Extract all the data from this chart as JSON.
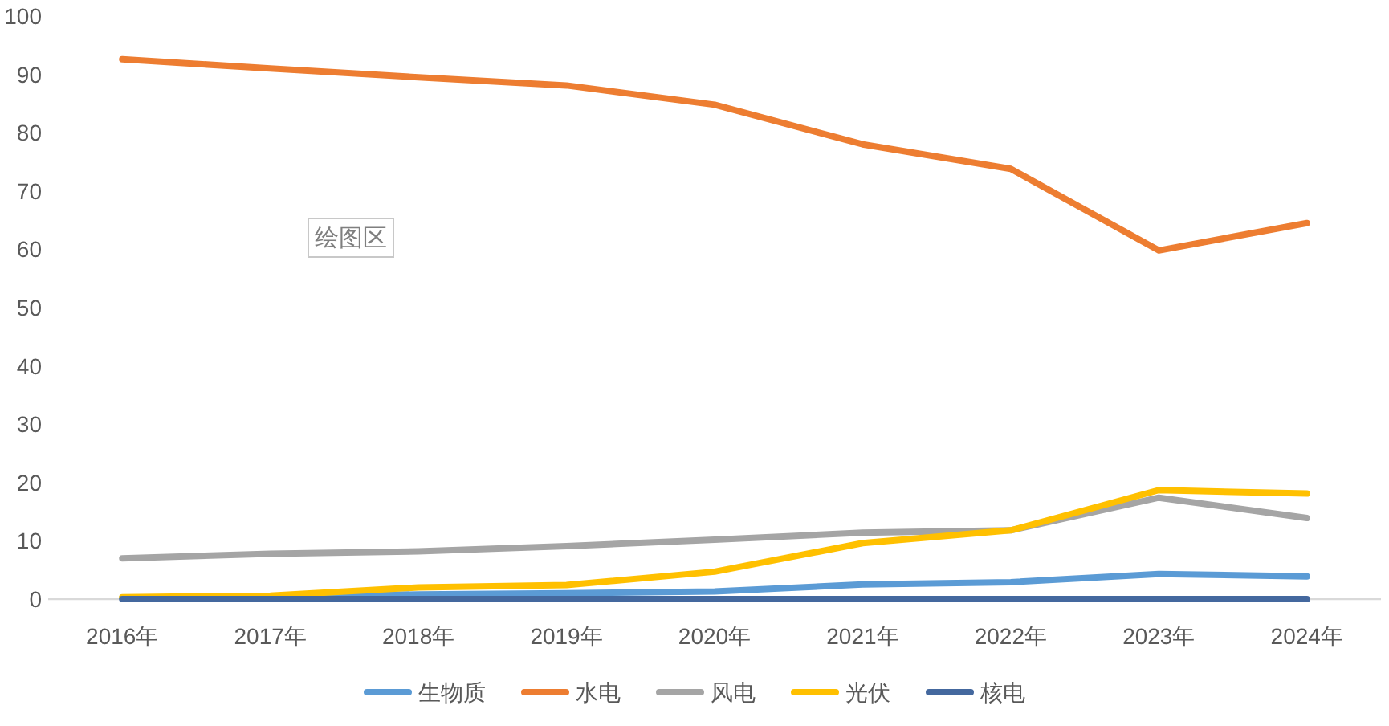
{
  "chart_data": {
    "type": "line",
    "categories": [
      "2016年",
      "2017年",
      "2018年",
      "2019年",
      "2020年",
      "2021年",
      "2022年",
      "2023年",
      "2024年"
    ],
    "series": [
      {
        "name": "生物质",
        "color": "#5b9bd5",
        "values": [
          0.2,
          0.4,
          0.8,
          1.0,
          1.3,
          2.5,
          2.9,
          4.3,
          3.9
        ]
      },
      {
        "name": "水电",
        "color": "#ed7d31",
        "values": [
          92.6,
          91.0,
          89.5,
          88.1,
          84.8,
          78.0,
          73.8,
          59.8,
          64.5
        ]
      },
      {
        "name": "风电",
        "color": "#a5a5a5",
        "values": [
          7.0,
          7.8,
          8.2,
          9.1,
          10.2,
          11.4,
          11.8,
          17.4,
          13.9
        ]
      },
      {
        "name": "光伏",
        "color": "#ffc000",
        "values": [
          0.3,
          0.6,
          2.0,
          2.4,
          4.7,
          9.6,
          11.8,
          18.7,
          18.1
        ]
      },
      {
        "name": "核电",
        "color": "#44689e",
        "values": [
          0,
          0,
          0,
          0,
          0,
          0,
          0,
          0,
          0
        ]
      }
    ],
    "ylim": [
      0,
      100
    ],
    "yticks": [
      0,
      10,
      20,
      30,
      40,
      50,
      60,
      70,
      80,
      90,
      100
    ],
    "legend": "bottom",
    "annotations": [
      "绘图区"
    ]
  }
}
